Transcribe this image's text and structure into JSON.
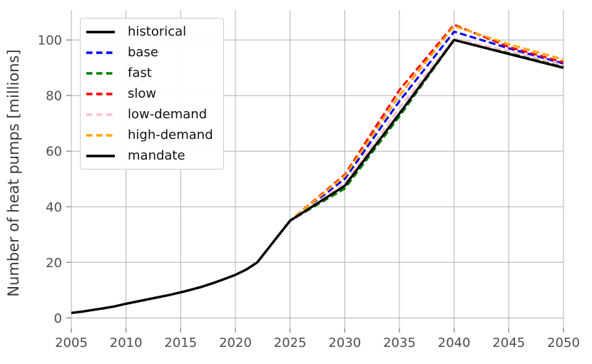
{
  "figure": {
    "background": "#ffffff",
    "grid_color": "#b0b0b0",
    "tick_color": "#8a8a8a",
    "tick_label_color": "#4d4d4d"
  },
  "chart_data": {
    "type": "line",
    "title": "",
    "xlabel": "",
    "ylabel": "Number of heat pumps [millions]",
    "x_ticks": [
      2005,
      2010,
      2015,
      2020,
      2025,
      2030,
      2035,
      2040,
      2045,
      2050
    ],
    "y_ticks": [
      0,
      20,
      40,
      60,
      80,
      100
    ],
    "xlim": [
      2005,
      2050
    ],
    "ylim": [
      -3.5,
      110.8
    ],
    "grid": true,
    "legend_position": "upper-left",
    "series": [
      {
        "name": "historical",
        "color": "#000000",
        "style": "solid",
        "points": [
          [
            2005,
            1.8
          ],
          [
            2006,
            2.3
          ],
          [
            2007,
            2.9
          ],
          [
            2008,
            3.5
          ],
          [
            2009,
            4.2
          ],
          [
            2010,
            5.1
          ],
          [
            2011,
            5.9
          ],
          [
            2012,
            6.7
          ],
          [
            2013,
            7.5
          ],
          [
            2014,
            8.3
          ],
          [
            2015,
            9.2
          ],
          [
            2016,
            10.2
          ],
          [
            2017,
            11.3
          ],
          [
            2018,
            12.6
          ],
          [
            2019,
            14.0
          ],
          [
            2020,
            15.5
          ],
          [
            2021,
            17.4
          ],
          [
            2022,
            20.0
          ]
        ]
      },
      {
        "name": "base",
        "color": "#0000ff",
        "style": "dashed",
        "points": [
          [
            2022,
            20
          ],
          [
            2025,
            35
          ],
          [
            2030,
            50
          ],
          [
            2035,
            78
          ],
          [
            2040,
            103
          ],
          [
            2045,
            97
          ],
          [
            2050,
            91.5
          ]
        ]
      },
      {
        "name": "fast",
        "color": "#008000",
        "style": "dashed",
        "points": [
          [
            2022,
            20
          ],
          [
            2025,
            35
          ],
          [
            2030,
            46.5
          ],
          [
            2035,
            72.5
          ],
          [
            2040,
            100
          ],
          [
            2045,
            95.5
          ],
          [
            2050,
            90.5
          ]
        ]
      },
      {
        "name": "slow",
        "color": "#ff0000",
        "style": "dashed",
        "points": [
          [
            2022,
            20
          ],
          [
            2025,
            35
          ],
          [
            2030,
            51.5
          ],
          [
            2035,
            82
          ],
          [
            2040,
            105.5
          ],
          [
            2045,
            97.5
          ],
          [
            2050,
            92
          ]
        ]
      },
      {
        "name": "low-demand",
        "color": "#ffc0cb",
        "style": "dashed",
        "points": [
          [
            2022,
            20
          ],
          [
            2025,
            35
          ],
          [
            2030,
            48.5
          ],
          [
            2035,
            75.5
          ],
          [
            2040,
            100.5
          ],
          [
            2045,
            96
          ],
          [
            2050,
            91
          ]
        ]
      },
      {
        "name": "high-demand",
        "color": "#ffa500",
        "style": "dashed",
        "points": [
          [
            2022,
            20
          ],
          [
            2025,
            35
          ],
          [
            2030,
            51
          ],
          [
            2035,
            80
          ],
          [
            2040,
            105
          ],
          [
            2045,
            98.5
          ],
          [
            2050,
            93
          ]
        ]
      },
      {
        "name": "mandate",
        "color": "#000000",
        "style": "solid",
        "points": [
          [
            2022,
            20
          ],
          [
            2025,
            35
          ],
          [
            2030,
            47.5
          ],
          [
            2035,
            73.5
          ],
          [
            2040,
            100
          ],
          [
            2045,
            95
          ],
          [
            2050,
            90
          ]
        ]
      }
    ]
  }
}
